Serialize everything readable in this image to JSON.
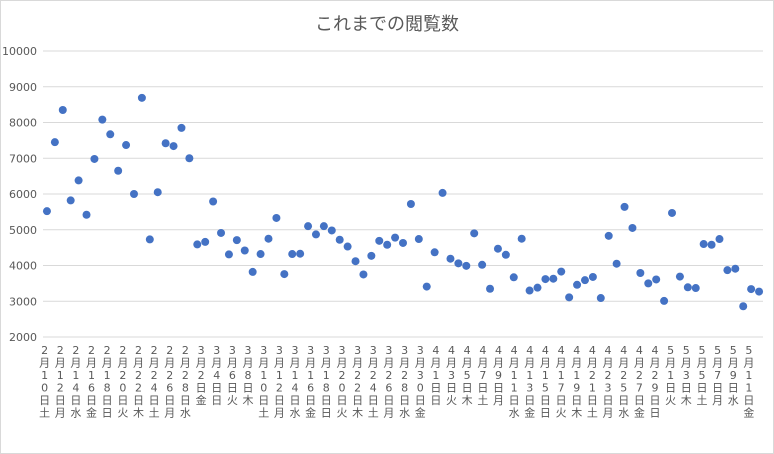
{
  "chart_data": {
    "type": "scatter",
    "title": "これまでの閲覧数",
    "xlabel": "",
    "ylabel": "",
    "ylim": [
      2000,
      10000
    ],
    "yticks": [
      2000,
      3000,
      4000,
      5000,
      6000,
      7000,
      8000,
      9000,
      10000
    ],
    "grid": true,
    "legend": "none",
    "marker_color": "#4472c4",
    "tick_labels": [
      "2月10日土",
      "2月12日月",
      "2月14日水",
      "2月16日金",
      "2月18日日",
      "2月20日火",
      "2月22日木",
      "2月24日土",
      "2月26日月",
      "2月28日水",
      "3月2日金",
      "3月4日日",
      "3月6日火",
      "3月8日木",
      "3月10日土",
      "3月12日月",
      "3月14日水",
      "3月16日金",
      "3月18日日",
      "3月20日火",
      "3月22日木",
      "3月24日土",
      "3月26日月",
      "3月28日水",
      "3月30日金",
      "4月1日日",
      "4月3日火",
      "4月5日木",
      "4月7日土",
      "4月9日月",
      "4月11日水",
      "4月13日金",
      "4月15日日",
      "4月17日火",
      "4月19日木",
      "4月21日土",
      "4月23日月",
      "4月25日水",
      "4月27日金",
      "4月29日日",
      "5月1日火",
      "5月3日木",
      "5月5日土",
      "5月7日月",
      "5月9日水",
      "5月11日金"
    ],
    "values": [
      5520,
      7450,
      8350,
      5820,
      6380,
      5420,
      6980,
      8080,
      7670,
      6650,
      7370,
      6000,
      8690,
      4730,
      6050,
      7420,
      7340,
      7850,
      7000,
      4590,
      4660,
      5790,
      4910,
      4310,
      4710,
      4420,
      3820,
      4320,
      4750,
      5330,
      3760,
      4320,
      4330,
      5100,
      4870,
      5100,
      4980,
      4720,
      4530,
      4120,
      3750,
      4270,
      4690,
      4580,
      4780,
      4630,
      5720,
      4740,
      3410,
      4370,
      6030,
      4190,
      4060,
      3990,
      4900,
      4020,
      3350,
      4470,
      4300,
      3670,
      4750,
      3300,
      3380,
      3620,
      3630,
      3830,
      3110,
      3460,
      3590,
      3680,
      3090,
      4830,
      4050,
      5640,
      5050,
      3790,
      3500,
      3610,
      3010,
      5470,
      3690,
      3390,
      3370,
      4600,
      4580,
      4740,
      3870,
      3910,
      2860,
      3340,
      3270
    ]
  }
}
